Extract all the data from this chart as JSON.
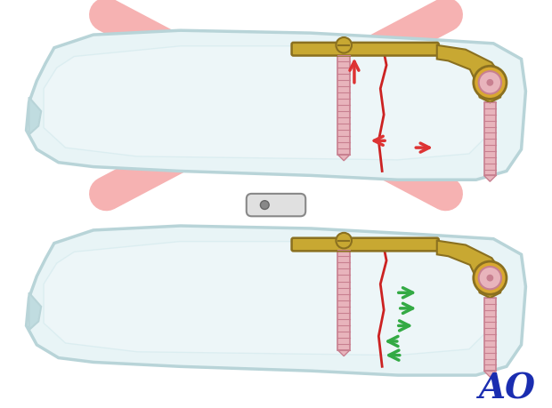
{
  "bg_color": "#ffffff",
  "bone_outline_color": "#b8d4d8",
  "bone_fill_color": "#e8f4f6",
  "bone_inner_color": "#d0e8ec",
  "plate_color": "#c8a832",
  "plate_outline": "#8a7020",
  "screw_body_color": "#e8b4bc",
  "screw_thread_color": "#c88090",
  "screw_head_color": "#c8a832",
  "fracture_color": "#cc2222",
  "red_arrow_color": "#dd3333",
  "green_arrow_color": "#33aa44",
  "cross_color": "#f08080",
  "cross_alpha": 0.6,
  "cross_lw": 28,
  "ao_color": "#1a2db0",
  "ao_fontsize": 28,
  "toggle_fill": "#e0e0e0",
  "toggle_outline": "#888888"
}
